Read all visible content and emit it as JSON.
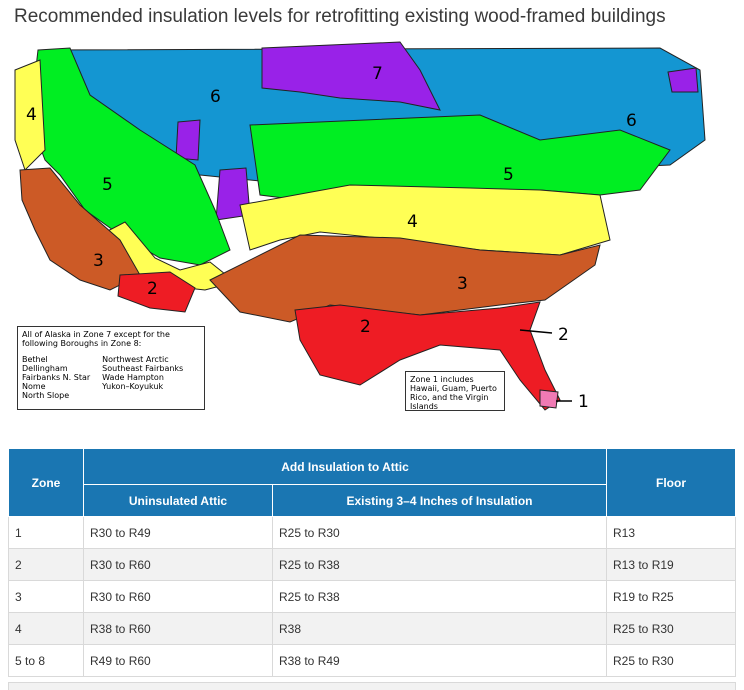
{
  "title": "Recommended insulation levels for retrofitting existing wood-framed buildings",
  "map": {
    "zone_labels": [
      "7",
      "6",
      "6",
      "4",
      "5",
      "5",
      "4",
      "3",
      "3",
      "2",
      "2",
      "2",
      "1"
    ],
    "alaska_note": {
      "intro": "All of Alaska in Zone 7 except for the following Boroughs in Zone 8:",
      "col1": [
        "Bethel",
        "Dellingham",
        "Fairbanks N. Star",
        "Nome",
        "North Slope"
      ],
      "col2": [
        "Northwest Arctic",
        "Southeast Fairbanks",
        "Wade Hampton",
        "Yukon–Koyukuk"
      ]
    },
    "zone1_note": "Zone 1 includes Hawaii, Guam, Puerto Rico, and the Virgin Islands",
    "colors": {
      "zone1": "#f07ab4",
      "zone2": "#ee1c24",
      "zone3": "#cc5a26",
      "zone4": "#ffff55",
      "zone5": "#00ee22",
      "zone6": "#1496d2",
      "zone7": "#9922e8"
    }
  },
  "table": {
    "header_zone": "Zone",
    "header_attic": "Add Insulation to Attic",
    "header_uninsulated": "Uninsulated Attic",
    "header_existing": "Existing 3–4 Inches of Insulation",
    "header_floor": "Floor",
    "rows": [
      {
        "zone": "1",
        "uninsulated": "R30 to R49",
        "existing": "R25 to R30",
        "floor": "R13"
      },
      {
        "zone": "2",
        "uninsulated": "R30 to R60",
        "existing": "R25 to R38",
        "floor": "R13 to R19"
      },
      {
        "zone": "3",
        "uninsulated": "R30 to R60",
        "existing": "R25 to R38",
        "floor": "R19 to R25"
      },
      {
        "zone": "4",
        "uninsulated": "R38 to R60",
        "existing": "R38",
        "floor": "R25 to R30"
      },
      {
        "zone": "5 to 8",
        "uninsulated": "R49 to R60",
        "existing": "R38 to R49",
        "floor": "R25 to R30"
      }
    ]
  }
}
